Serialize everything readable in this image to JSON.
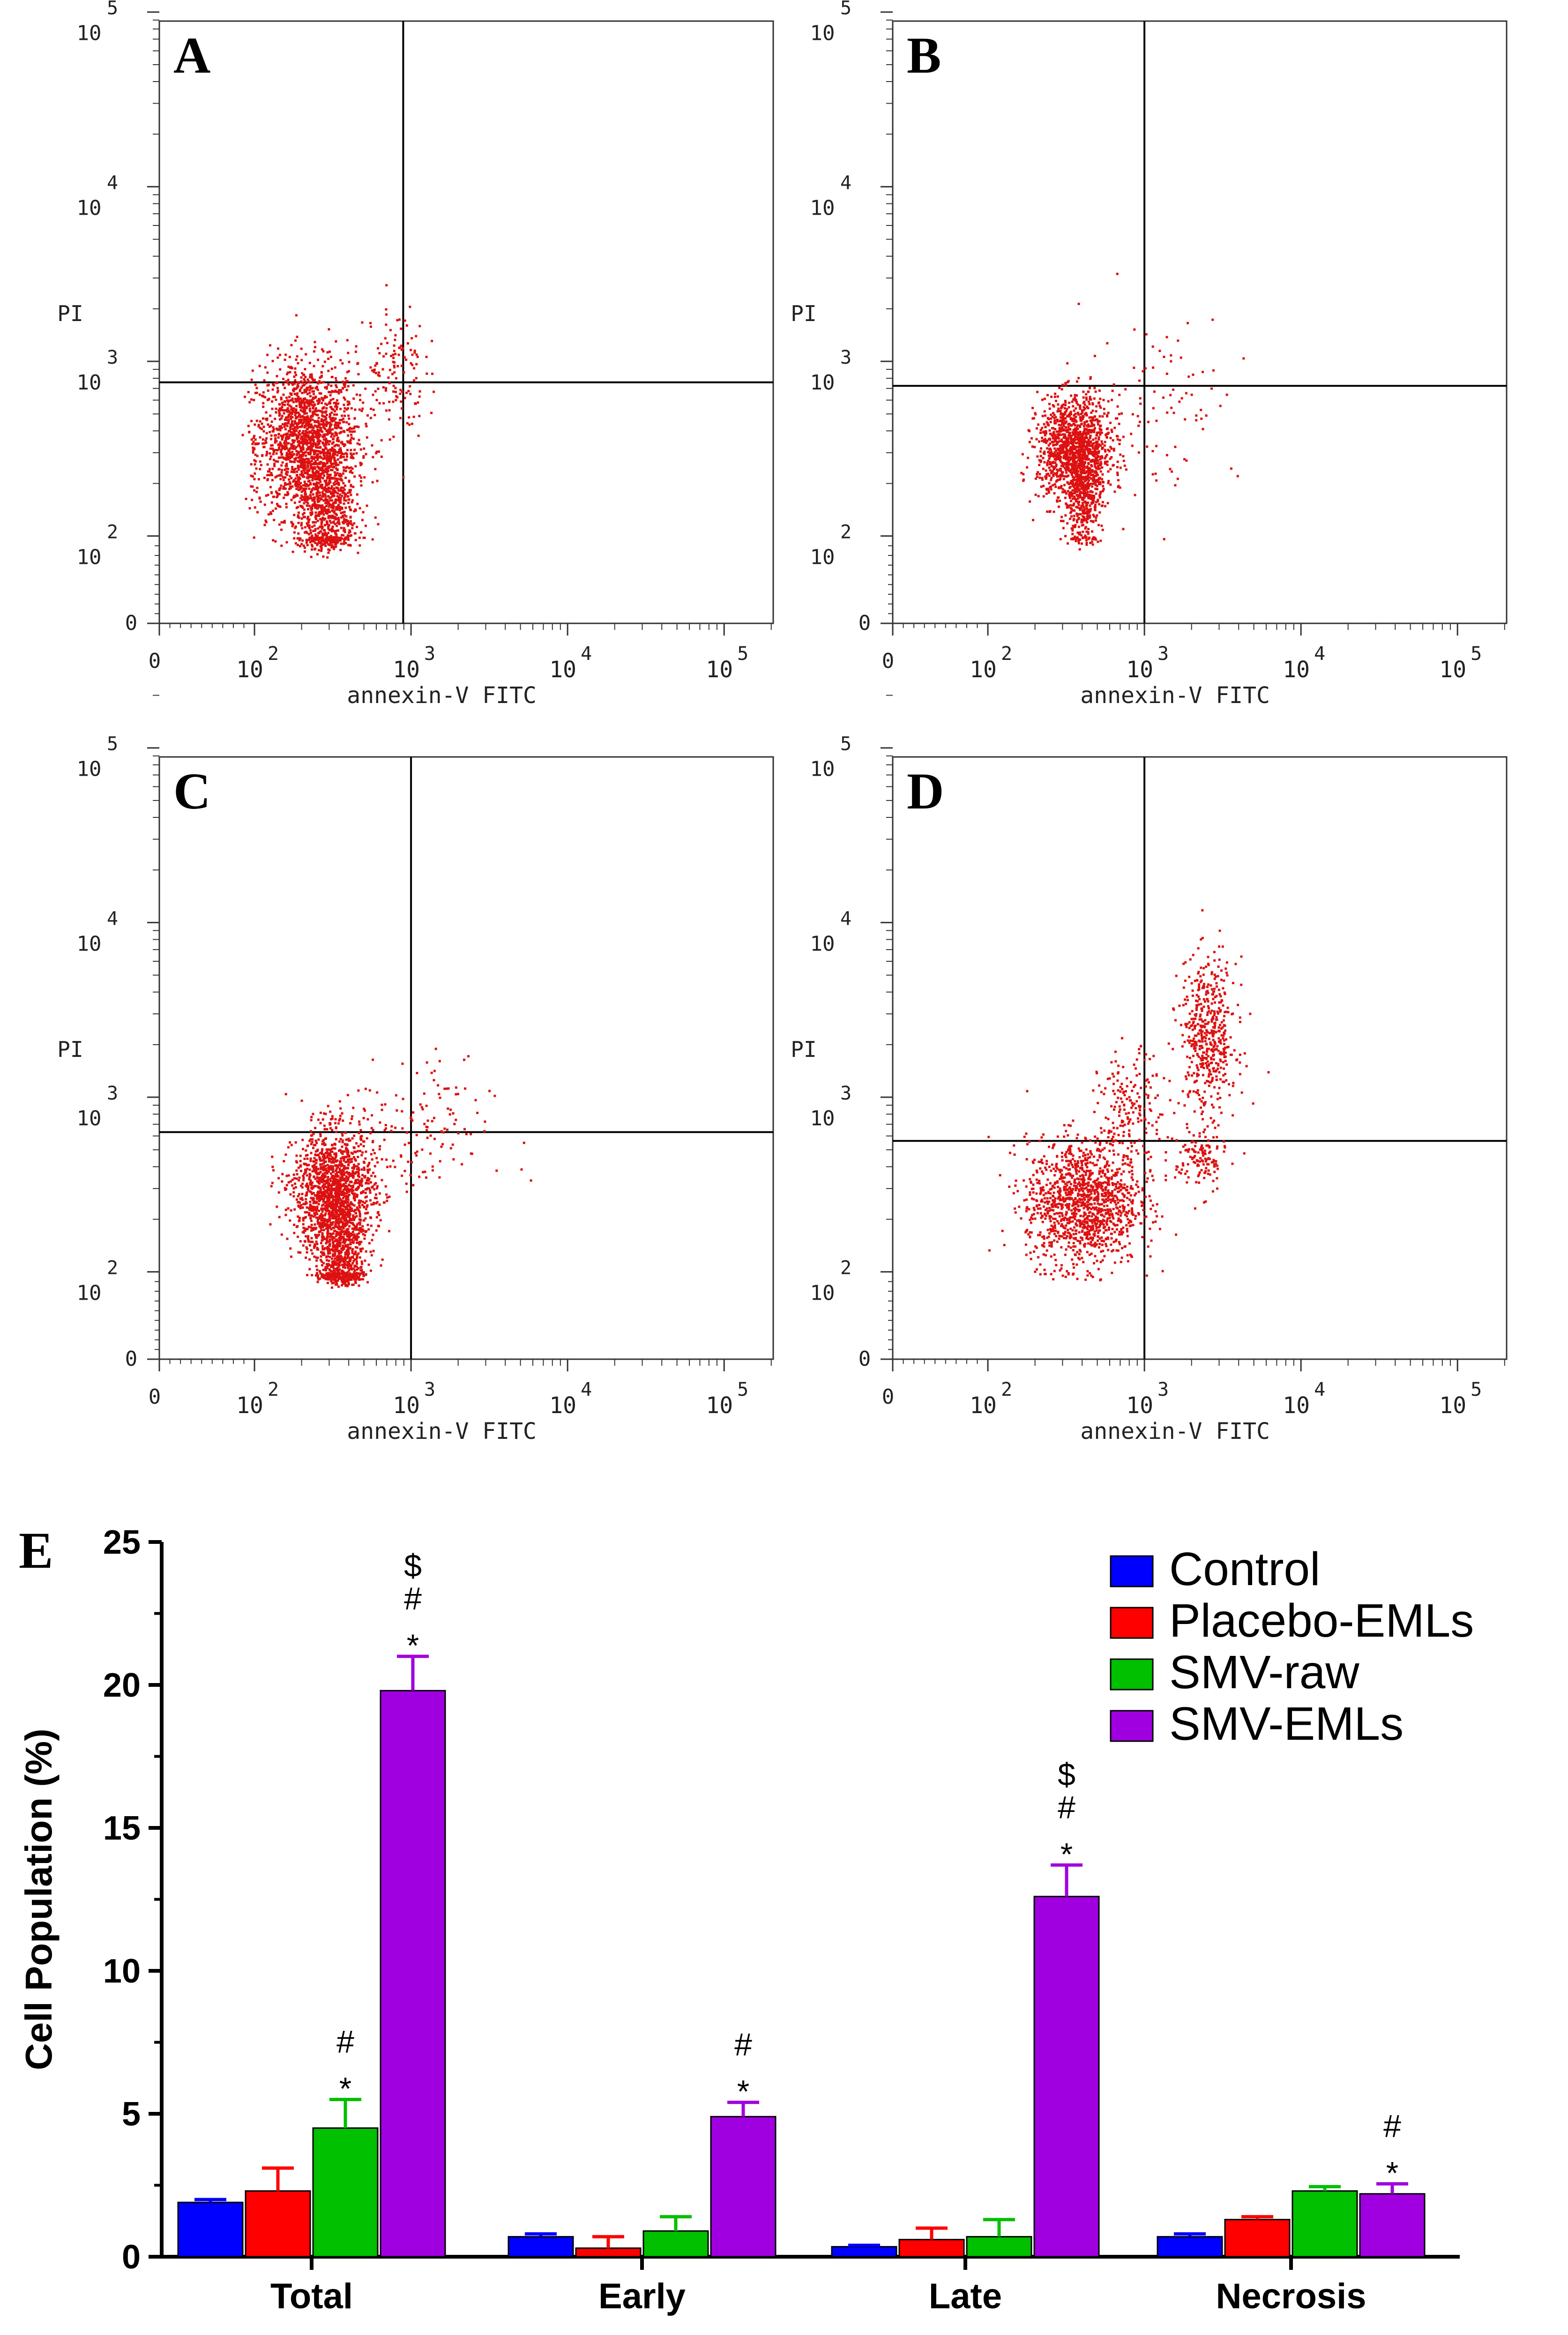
{
  "chart_data": [
    {
      "type": "scatter",
      "panel": "A",
      "xlabel": "annexin-V FITC",
      "ylabel": "PI",
      "x_ticks": [
        {
          "base": "0",
          "exp": ""
        },
        {
          "base": "10",
          "exp": "2"
        },
        {
          "base": "10",
          "exp": "3"
        },
        {
          "base": "10",
          "exp": "4"
        },
        {
          "base": "10",
          "exp": "5"
        }
      ],
      "y_ticks": [
        {
          "base": "0",
          "exp": ""
        },
        {
          "base": "10",
          "exp": "2"
        },
        {
          "base": "10",
          "exp": "3"
        },
        {
          "base": "10",
          "exp": "4"
        },
        {
          "base": "10",
          "exp": "5"
        }
      ],
      "gate": {
        "x_decades": 2.95,
        "y_decades": 2.88
      },
      "populations": [
        {
          "cx": 2.33,
          "cy": 2.55,
          "sx": 0.16,
          "sy": 0.22,
          "n": 1800
        },
        {
          "cx": 2.45,
          "cy": 2.15,
          "sx": 0.09,
          "sy": 0.2,
          "n": 700
        },
        {
          "cx": 2.88,
          "cy": 2.95,
          "sx": 0.1,
          "sy": 0.2,
          "n": 140
        }
      ]
    },
    {
      "type": "scatter",
      "panel": "B",
      "xlabel": "annexin-V FITC",
      "ylabel": "PI",
      "x_ticks": [
        {
          "base": "0",
          "exp": ""
        },
        {
          "base": "10",
          "exp": "2"
        },
        {
          "base": "10",
          "exp": "3"
        },
        {
          "base": "10",
          "exp": "4"
        },
        {
          "base": "10",
          "exp": "5"
        }
      ],
      "y_ticks": [
        {
          "base": "0",
          "exp": ""
        },
        {
          "base": "10",
          "exp": "2"
        },
        {
          "base": "10",
          "exp": "3"
        },
        {
          "base": "10",
          "exp": "4"
        },
        {
          "base": "10",
          "exp": "5"
        }
      ],
      "gate": {
        "x_decades": 3.0,
        "y_decades": 2.86
      },
      "populations": [
        {
          "cx": 2.55,
          "cy": 2.5,
          "sx": 0.12,
          "sy": 0.15,
          "n": 1300
        },
        {
          "cx": 2.6,
          "cy": 2.22,
          "sx": 0.06,
          "sy": 0.15,
          "n": 400
        },
        {
          "cx": 3.1,
          "cy": 2.8,
          "sx": 0.25,
          "sy": 0.25,
          "n": 90
        }
      ]
    },
    {
      "type": "scatter",
      "panel": "C",
      "xlabel": "annexin-V FITC",
      "ylabel": "PI",
      "x_ticks": [
        {
          "base": "0",
          "exp": ""
        },
        {
          "base": "10",
          "exp": "2"
        },
        {
          "base": "10",
          "exp": "3"
        },
        {
          "base": "10",
          "exp": "4"
        },
        {
          "base": "10",
          "exp": "5"
        }
      ],
      "y_ticks": [
        {
          "base": "0",
          "exp": ""
        },
        {
          "base": "10",
          "exp": "2"
        },
        {
          "base": "10",
          "exp": "3"
        },
        {
          "base": "10",
          "exp": "4"
        },
        {
          "base": "10",
          "exp": "5"
        }
      ],
      "gate": {
        "x_decades": 3.0,
        "y_decades": 2.8
      },
      "populations": [
        {
          "cx": 2.5,
          "cy": 2.45,
          "sx": 0.13,
          "sy": 0.18,
          "n": 1600
        },
        {
          "cx": 2.55,
          "cy": 2.05,
          "sx": 0.07,
          "sy": 0.15,
          "n": 600
        },
        {
          "cx": 3.0,
          "cy": 2.8,
          "sx": 0.25,
          "sy": 0.2,
          "n": 140
        }
      ]
    },
    {
      "type": "scatter",
      "panel": "D",
      "xlabel": "annexin-V FITC",
      "ylabel": "PI",
      "x_ticks": [
        {
          "base": "0",
          "exp": ""
        },
        {
          "base": "10",
          "exp": "2"
        },
        {
          "base": "10",
          "exp": "3"
        },
        {
          "base": "10",
          "exp": "4"
        },
        {
          "base": "10",
          "exp": "5"
        }
      ],
      "y_ticks": [
        {
          "base": "0",
          "exp": ""
        },
        {
          "base": "10",
          "exp": "2"
        },
        {
          "base": "10",
          "exp": "3"
        },
        {
          "base": "10",
          "exp": "4"
        },
        {
          "base": "10",
          "exp": "5"
        }
      ],
      "gate": {
        "x_decades": 3.0,
        "y_decades": 2.75
      },
      "populations": [
        {
          "cx": 2.6,
          "cy": 2.4,
          "sx": 0.18,
          "sy": 0.18,
          "n": 1300
        },
        {
          "cx": 3.4,
          "cy": 3.35,
          "sx": 0.09,
          "sy": 0.22,
          "n": 500
        },
        {
          "cx": 3.35,
          "cy": 2.65,
          "sx": 0.08,
          "sy": 0.1,
          "n": 130
        },
        {
          "cx": 2.9,
          "cy": 2.9,
          "sx": 0.1,
          "sy": 0.18,
          "n": 200
        }
      ]
    },
    {
      "type": "bar",
      "panel": "E",
      "categories": [
        "Total",
        "Early",
        "Late",
        "Necrosis"
      ],
      "ylabel": "Cell Population (%)",
      "ylim": [
        0,
        25
      ],
      "yticks": [
        0,
        5,
        10,
        15,
        20,
        25
      ],
      "series": [
        {
          "name": "Control",
          "color": "#0000ff",
          "values": [
            1.9,
            0.7,
            0.35,
            0.7
          ],
          "errors": [
            0.1,
            0.1,
            0.05,
            0.1
          ]
        },
        {
          "name": "Placebo-EMLs",
          "color": "#ff0000",
          "values": [
            2.3,
            0.3,
            0.6,
            1.3
          ],
          "errors": [
            0.8,
            0.4,
            0.4,
            0.1
          ]
        },
        {
          "name": "SMV-raw",
          "color": "#00c000",
          "values": [
            4.5,
            0.9,
            0.7,
            2.3
          ],
          "errors": [
            1.0,
            0.5,
            0.6,
            0.15
          ]
        },
        {
          "name": "SMV-EMLs",
          "color": "#a000e0",
          "values": [
            19.8,
            4.9,
            12.6,
            2.2
          ],
          "errors": [
            1.2,
            0.5,
            1.1,
            0.35
          ]
        }
      ],
      "annotations": [
        {
          "category": "Total",
          "series": "SMV-raw",
          "marks": [
            "#",
            "*"
          ]
        },
        {
          "category": "Total",
          "series": "SMV-EMLs",
          "marks": [
            "$",
            "#",
            "*"
          ]
        },
        {
          "category": "Early",
          "series": "SMV-EMLs",
          "marks": [
            "#",
            "*"
          ]
        },
        {
          "category": "Late",
          "series": "SMV-EMLs",
          "marks": [
            "$",
            "#",
            "*"
          ]
        },
        {
          "category": "Necrosis",
          "series": "SMV-EMLs",
          "marks": [
            "#",
            "*"
          ]
        }
      ],
      "legend_position": "top-right"
    }
  ]
}
